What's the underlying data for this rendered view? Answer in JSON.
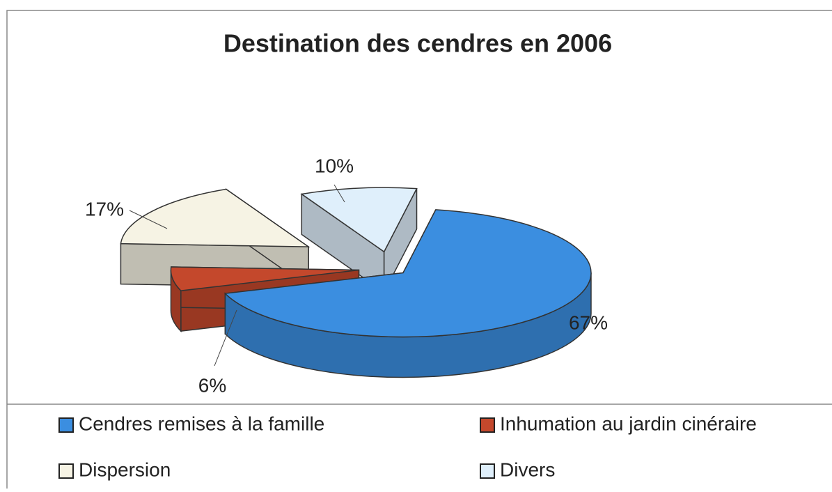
{
  "chart_data": {
    "type": "pie",
    "title": "Destination des cendres en 2006",
    "categories": [
      "Cendres remises à la famille",
      "Inhumation au jardin cinéraire",
      "Dispersion",
      "Divers"
    ],
    "values": [
      67,
      6,
      17,
      10
    ],
    "value_labels": [
      "67%",
      "6%",
      "17%",
      "10%"
    ],
    "colors": [
      "#3b8ee0",
      "#c4482c",
      "#f6f3e4",
      "#dfeffb"
    ],
    "legend": "bottom"
  }
}
